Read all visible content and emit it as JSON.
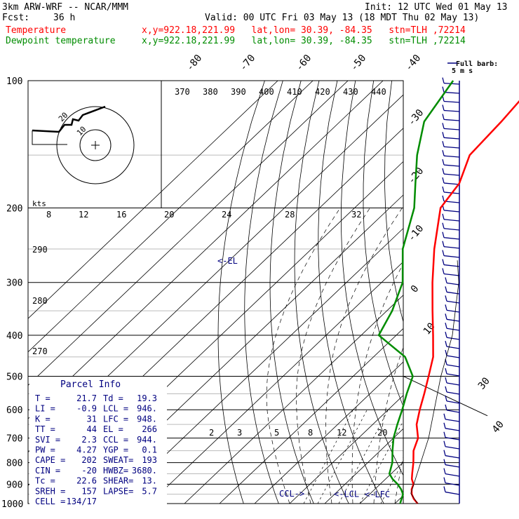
{
  "header": {
    "model": "3km ARW-WRF -- NCAR/MMM",
    "init": "Init: 12 UTC Wed 01 May 13",
    "fcst_label": "Fcst:",
    "fcst_value": "36 h",
    "valid": "Valid: 00 UTC Fri 03 May 13 (18 MDT Thu 02 May 13)",
    "temp_label": "Temperature",
    "dew_label": "Dewpoint temperature",
    "loc_info": "x,y=922.18,221.99   lat,lon= 30.39, -84.35   stn=TLH ,72214"
  },
  "colors": {
    "temperature": "#ff0000",
    "dewpoint": "#008c00",
    "wind": "#000080",
    "grid": "#000000"
  },
  "pressure_levels": [
    100,
    200,
    300,
    400,
    500,
    600,
    700,
    800,
    900,
    1000
  ],
  "temp_iso_labels": [
    "-80",
    "-70",
    "-60",
    "-50",
    "-40",
    "-30",
    "-20",
    "-10",
    "0",
    "10",
    "30",
    "40"
  ],
  "theta_labels": [
    "370",
    "380",
    "390",
    "400",
    "410",
    "420",
    "430",
    "440"
  ],
  "dry_labels": [
    "290",
    "280",
    "270"
  ],
  "mixing_labels": [
    "2",
    "3",
    "5",
    "8",
    "12",
    "20"
  ],
  "hodograph": {
    "ring_label": "20",
    "ring_label2": "10",
    "kts_label": "kts",
    "speed_labels": [
      "8",
      "12",
      "16",
      "20",
      "24",
      "28",
      "32"
    ]
  },
  "wind_key": {
    "full_barb": "Full barb:",
    "unit": "5 m s"
  },
  "level_labels": {
    "el": "<-EL",
    "ccl": "CCL->",
    "lcl": "<-LCL",
    "lfc": "<-LFC"
  },
  "parcel": {
    "title": "Parcel Info",
    "rows": [
      [
        "T  =",
        "21.7",
        "Td =",
        "19.3"
      ],
      [
        "LI =",
        "-0.9",
        "LCL =",
        "946."
      ],
      [
        "K  =",
        "31",
        "LFC =",
        "948."
      ],
      [
        "TT =",
        "44",
        "EL  =",
        "266"
      ],
      [
        "SVI =",
        "2.3",
        "CCL =",
        "944."
      ],
      [
        "PW =",
        "4.27",
        "YGP =",
        "0.1"
      ],
      [
        "CAPE =",
        "202",
        "SWEAT=",
        "193"
      ],
      [
        "CIN =",
        "-20",
        "HWBZ=",
        "3680."
      ],
      [
        "Tc =",
        "22.6",
        "SHEAR=",
        "13."
      ],
      [
        "SREH =",
        "157",
        "LAPSE=",
        "5.7"
      ],
      [
        "CELL =",
        "134/17",
        "",
        ""
      ]
    ]
  },
  "chart_data": {
    "type": "line",
    "title": "",
    "xlabel": "",
    "ylabel": "",
    "y_axis": "pressure (hPa), log scale",
    "ylim": [
      1000,
      100
    ],
    "series": [
      {
        "name": "Temperature",
        "pressure": [
          1000,
          975,
          950,
          925,
          900,
          875,
          850,
          800,
          750,
          700,
          650,
          600,
          550,
          500,
          450,
          400,
          350,
          300,
          250,
          200,
          175,
          150,
          125,
          100
        ],
        "values": [
          26.5,
          24.0,
          22.0,
          20.5,
          19.5,
          17.5,
          16.0,
          13.0,
          9.5,
          7.0,
          2.5,
          -1.0,
          -4.5,
          -8.5,
          -13.0,
          -19.5,
          -27.0,
          -35.5,
          -45.0,
          -55.5,
          -57.5,
          -63.0,
          -64.0,
          -66.0
        ]
      },
      {
        "name": "Dewpoint temperature",
        "pressure": [
          1000,
          975,
          950,
          925,
          900,
          875,
          850,
          800,
          750,
          700,
          650,
          600,
          550,
          500,
          450,
          400,
          350,
          300,
          250,
          200,
          175,
          150,
          125,
          100
        ],
        "values": [
          21.5,
          20.5,
          19.5,
          17.5,
          15.0,
          12.0,
          9.5,
          7.0,
          3.5,
          0.0,
          -3.0,
          -6.0,
          -9.5,
          -13.0,
          -21.0,
          -35.0,
          -38.5,
          -44.0,
          -54.0,
          -63.0,
          -70.0,
          -78.0,
          -86.0,
          -90.0
        ]
      }
    ],
    "grid": true
  }
}
